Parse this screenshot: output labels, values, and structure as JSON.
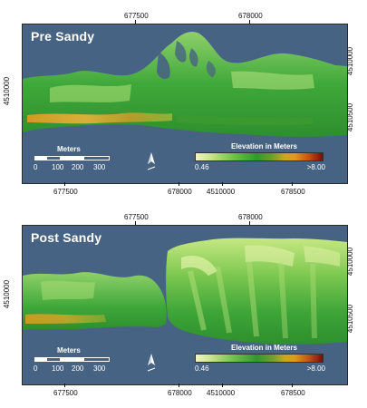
{
  "panels": [
    {
      "title": "Pre Sandy",
      "x_ticks_top": [
        "677500",
        "678000"
      ],
      "x_ticks_bottom": [
        "677500",
        "678000",
        "4510000",
        "678500"
      ],
      "y_tick_left": "4510000",
      "y_ticks_right": [
        "4510000",
        "4510500"
      ]
    },
    {
      "title": "Post Sandy",
      "x_ticks_top": [
        "677500",
        "678000"
      ],
      "x_ticks_bottom": [
        "677500",
        "678000",
        "4510000",
        "678500"
      ],
      "y_tick_left": "4510000",
      "y_ticks_right": [
        "4510000",
        "4510500"
      ]
    }
  ],
  "scalebar": {
    "title": "Meters",
    "labels": [
      "0",
      "100",
      "200",
      "300"
    ]
  },
  "legend": {
    "title": "Elevation in Meters",
    "min_label": "0.46",
    "max_label": ">8.00"
  },
  "icons": {
    "north_arrow": "north-arrow-icon"
  },
  "colors": {
    "water": "#476383",
    "low_elevation": "#f2f3c8",
    "mid_elevation": "#2f9a2e",
    "high_elevation": "#7a0d0d"
  }
}
